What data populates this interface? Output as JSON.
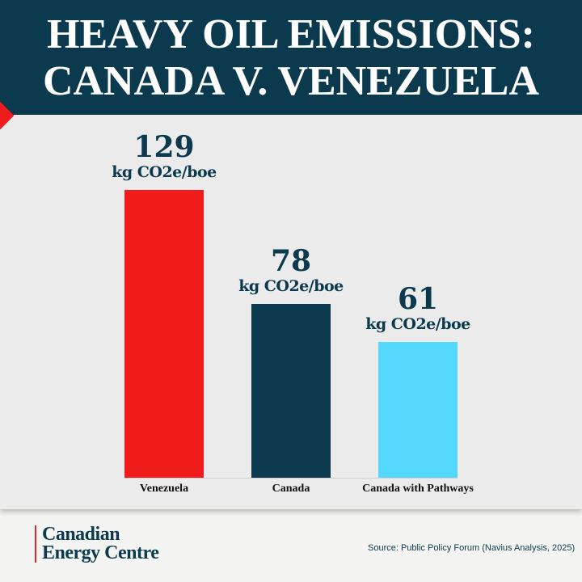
{
  "header": {
    "title_line1": "HEAVY OIL EMISSIONS:",
    "title_line2": "CANADA V. VENEZUELA"
  },
  "chart_data": {
    "type": "bar",
    "categories": [
      "Venezuela",
      "Canada",
      "Canada with Pathways"
    ],
    "values": [
      129,
      78,
      61
    ],
    "unit": "kg CO2e/boe",
    "colors": [
      "#f01c1c",
      "#0b3a4e",
      "#55d8fe"
    ],
    "ylim": [
      0,
      129
    ],
    "grid": false
  },
  "footer": {
    "logo_line1": "Canadian",
    "logo_line2": "Energy Centre",
    "source": "Source: Public Policy Forum (Navius Analysis, 2025)"
  }
}
